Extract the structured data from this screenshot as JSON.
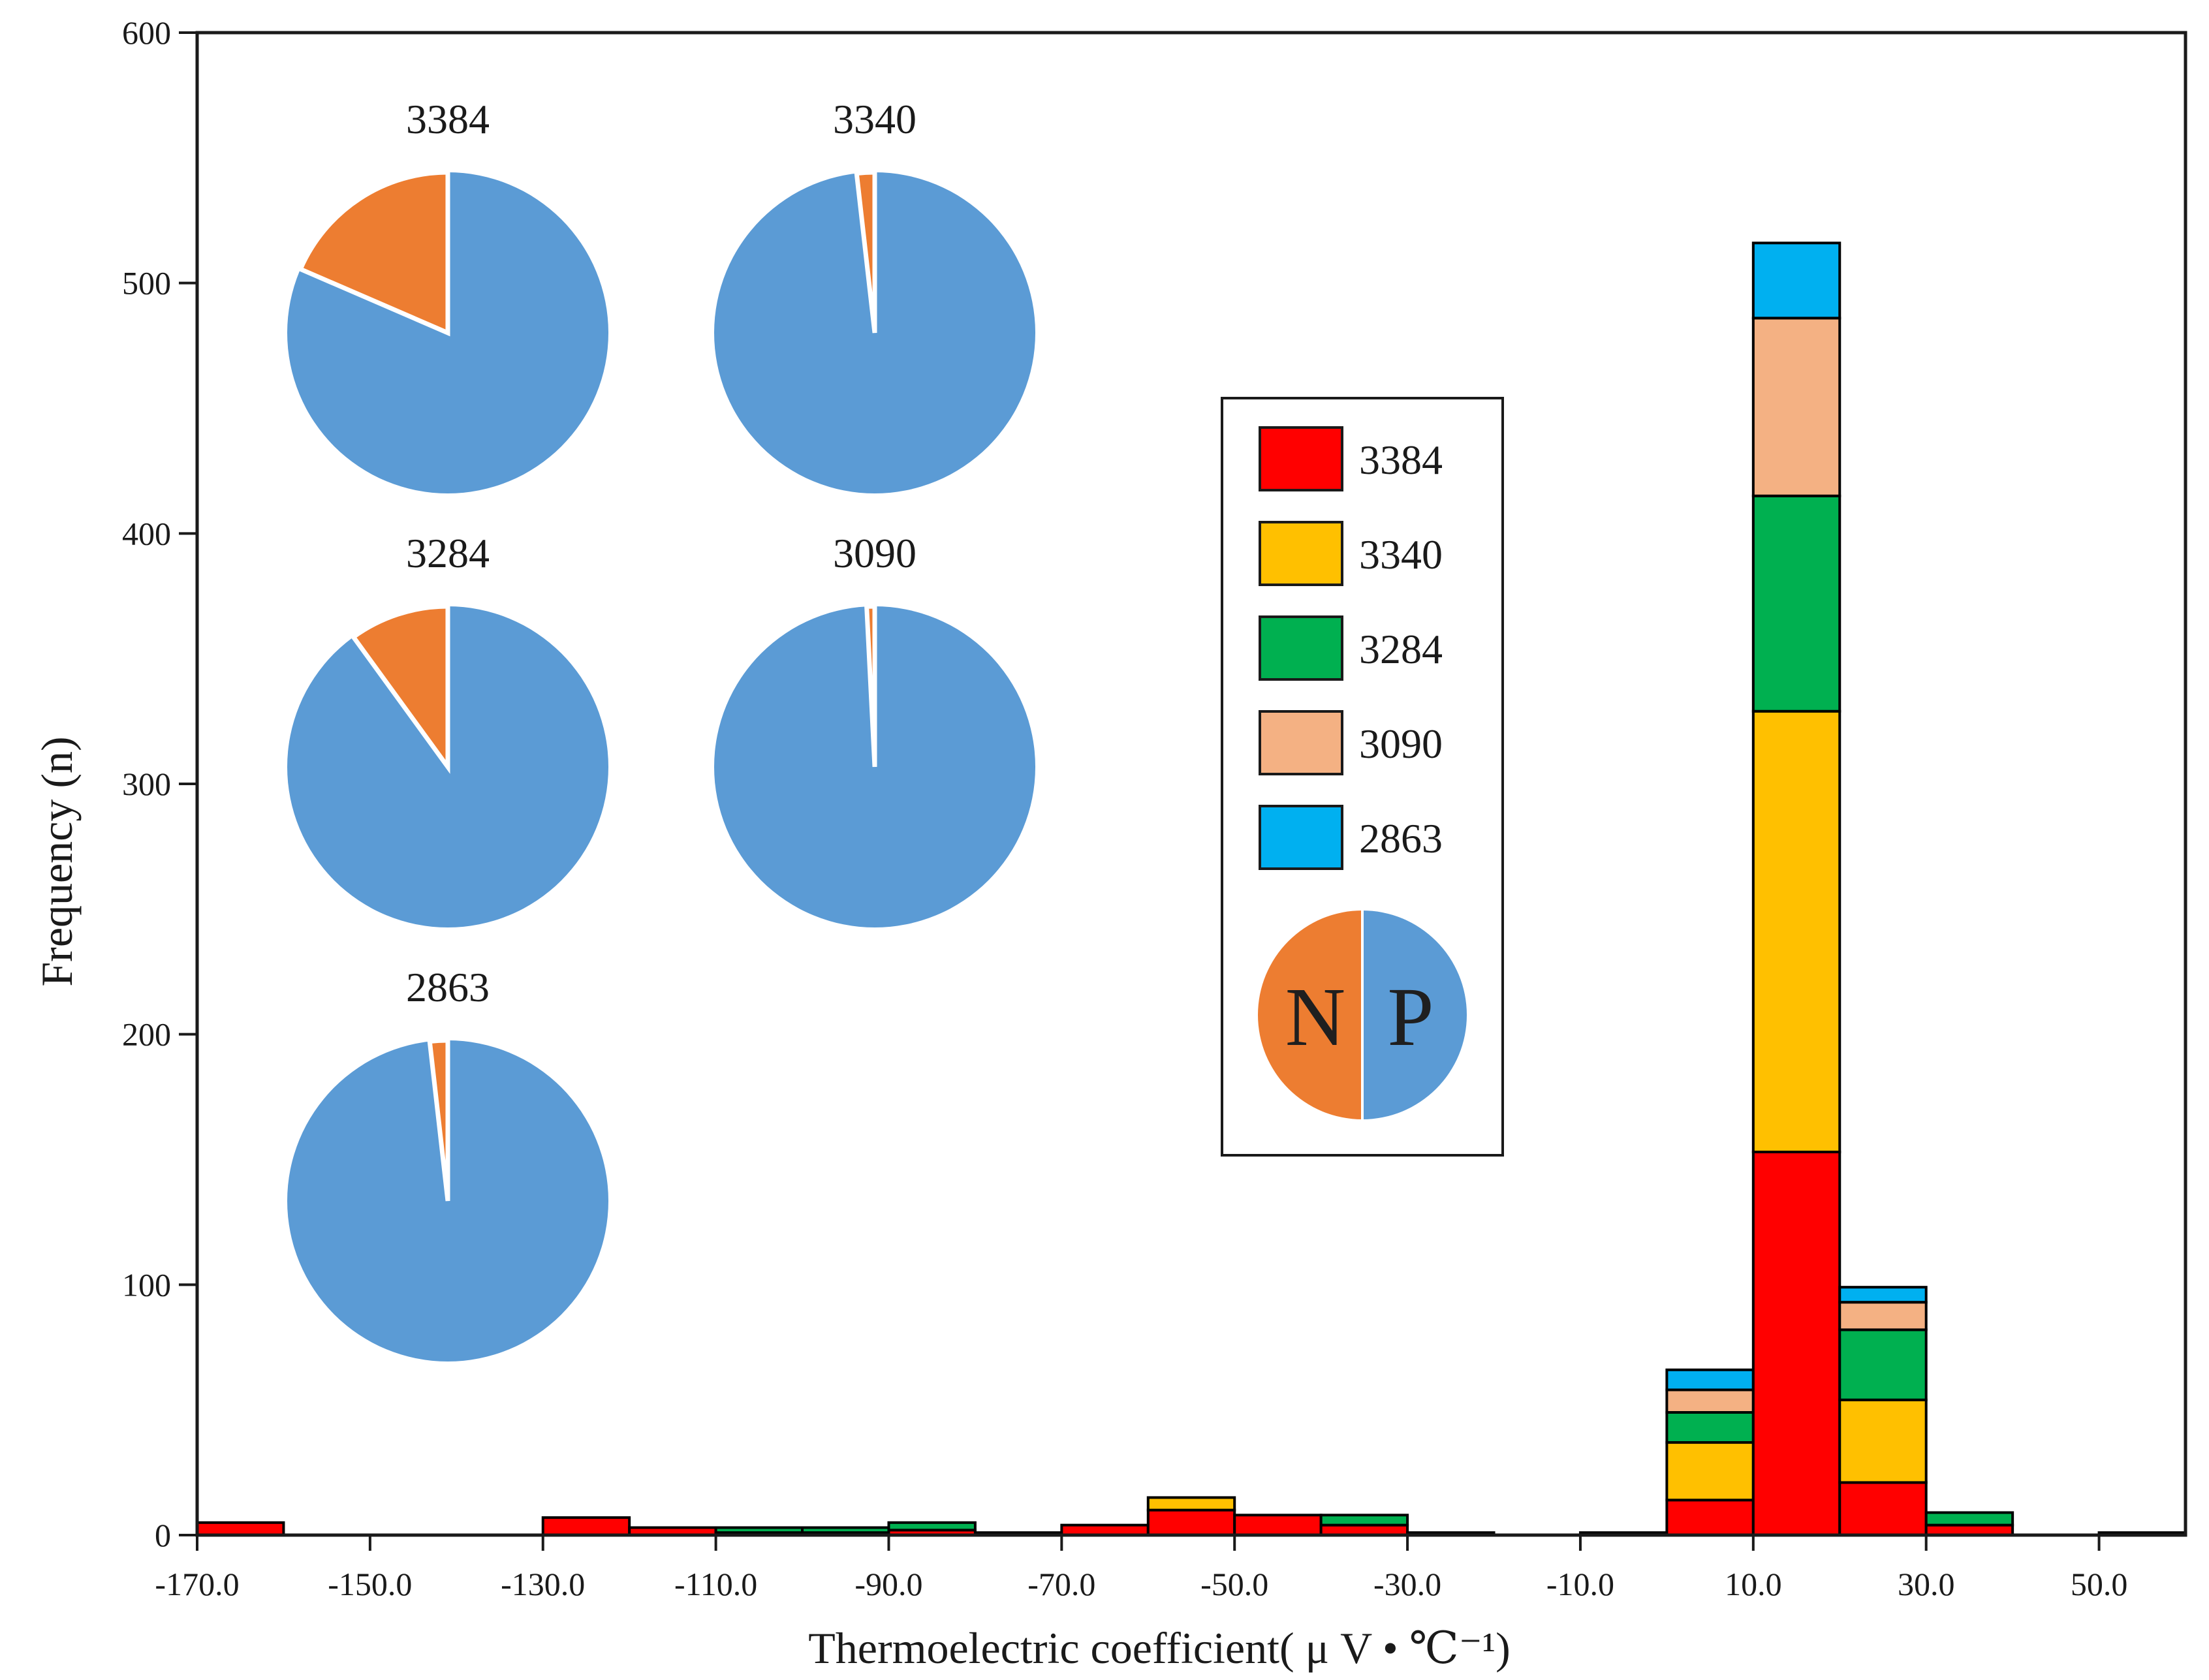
{
  "chart_data": {
    "type": "bar",
    "stacked": true,
    "xlabel": "Thermoelectric coefficient( μ V • ℃⁻¹)",
    "ylabel": "Frequency (n)",
    "ylim": [
      0,
      600
    ],
    "xlim": [
      -170,
      60
    ],
    "bin_width": 10,
    "yticks": [
      0,
      100,
      200,
      300,
      400,
      500,
      600
    ],
    "xtick_values": [
      -170,
      -150,
      -130,
      -110,
      -90,
      -70,
      -50,
      -30,
      -10,
      10,
      30,
      50
    ],
    "xtick_labels": [
      "-170.0",
      "-150.0",
      "-130.0",
      "-110.0",
      "-90.0",
      "-70.0",
      "-50.0",
      "-30.0",
      "-10.0",
      "10.0",
      "30.0",
      "50.0"
    ],
    "bin_starts": [
      -170,
      -130,
      -120,
      -110,
      -100,
      -90,
      -80,
      -70,
      -60,
      -50,
      -40,
      -30,
      -10,
      0,
      10,
      20,
      30,
      50
    ],
    "series": [
      {
        "name": "3384",
        "color": "#ff0000",
        "values": [
          5,
          7,
          3,
          1,
          1,
          2,
          1,
          4,
          10,
          8,
          4,
          1,
          1,
          14,
          153,
          21,
          4,
          1
        ]
      },
      {
        "name": "3340",
        "color": "#ffc000",
        "values": [
          0,
          0,
          0,
          0,
          0,
          0,
          0,
          0,
          5,
          0,
          0,
          0,
          0,
          23,
          176,
          33,
          0,
          0
        ]
      },
      {
        "name": "3284",
        "color": "#00b050",
        "values": [
          0,
          0,
          0,
          2,
          2,
          3,
          0,
          0,
          0,
          0,
          4,
          0,
          0,
          12,
          86,
          28,
          5,
          0
        ]
      },
      {
        "name": "3090",
        "color": "#f4b183",
        "values": [
          0,
          0,
          0,
          0,
          0,
          0,
          0,
          0,
          0,
          0,
          0,
          0,
          0,
          9,
          71,
          11,
          0,
          0
        ]
      },
      {
        "name": "2863",
        "color": "#00b0f0",
        "values": [
          0,
          0,
          0,
          0,
          0,
          0,
          0,
          0,
          0,
          0,
          0,
          0,
          0,
          8,
          30,
          6,
          0,
          0
        ]
      }
    ],
    "legend": {
      "placement": "center-right",
      "entries": [
        "3384",
        "3340",
        "3284",
        "3090",
        "2863"
      ],
      "pie_key": {
        "left_label": "N",
        "right_label": "P",
        "left_color": "#ed7d31",
        "right_color": "#5b9bd5"
      }
    },
    "pies": [
      {
        "title": "3384",
        "N_fraction": 0.185
      },
      {
        "title": "3340",
        "N_fraction": 0.018
      },
      {
        "title": "3284",
        "N_fraction": 0.1
      },
      {
        "title": "3090",
        "N_fraction": 0.008
      },
      {
        "title": "2863",
        "N_fraction": 0.018
      }
    ],
    "pie_colors": {
      "N": "#ed7d31",
      "P": "#5b9bd5"
    }
  }
}
